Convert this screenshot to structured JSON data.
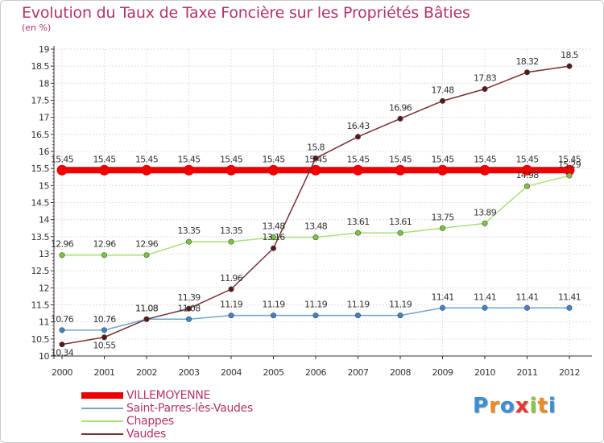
{
  "title": "Evolution du Taux de Taxe Foncière sur les Propriétés Bâties",
  "subtitle": "(en %)",
  "logo": {
    "letters": [
      "P",
      "r",
      "o",
      "x",
      "i",
      "t",
      "i"
    ],
    "colors": [
      "#3a8fd6",
      "#f08a24",
      "#3a8fd6",
      "#e8382e",
      "#8cc63f",
      "#f08a24",
      "#3a8fd6"
    ]
  },
  "chart_data": {
    "type": "line",
    "title": "Evolution du Taux de Taxe Foncière sur les Propriétés Bâties",
    "ylabel": "(en %)",
    "xlabel": "",
    "x": [
      "2000",
      "2001",
      "2002",
      "2003",
      "2004",
      "2005",
      "2006",
      "2007",
      "2008",
      "2009",
      "2010",
      "2011",
      "2012"
    ],
    "ylim": [
      10,
      19
    ],
    "yticks": [
      "10",
      "10.5",
      "11",
      "11.5",
      "12",
      "12.5",
      "13",
      "13.5",
      "14",
      "14.5",
      "15",
      "15.5",
      "16",
      "16.5",
      "17",
      "17.5",
      "18",
      "18.5",
      "19"
    ],
    "grid": true,
    "legend": "bottom-left",
    "series": [
      {
        "name": "VILLEMOYENNE",
        "color": "#ee0000",
        "thick": true,
        "values": [
          15.45,
          15.45,
          15.45,
          15.45,
          15.45,
          15.45,
          15.45,
          15.45,
          15.45,
          15.45,
          15.45,
          15.45,
          15.45
        ]
      },
      {
        "name": "Saint-Parres-lès-Vaudes",
        "color": "#6fa4cf",
        "point": "#3c86c8",
        "thick": false,
        "values": [
          10.76,
          10.76,
          11.08,
          11.08,
          11.19,
          11.19,
          11.19,
          11.19,
          11.19,
          11.41,
          11.41,
          11.41,
          11.41
        ]
      },
      {
        "name": "Chappes",
        "color": "#a8e07a",
        "point": "#77c83a",
        "thick": false,
        "values": [
          12.96,
          12.96,
          12.96,
          13.35,
          13.35,
          13.48,
          13.48,
          13.61,
          13.61,
          13.75,
          13.89,
          14.98,
          15.29
        ]
      },
      {
        "name": "Vaudes",
        "color": "#7a3030",
        "point": "#5a1818",
        "thick": false,
        "values": [
          10.34,
          10.55,
          11.08,
          11.39,
          11.96,
          13.16,
          15.8,
          16.43,
          16.96,
          17.48,
          17.83,
          18.32,
          18.5
        ]
      }
    ]
  }
}
